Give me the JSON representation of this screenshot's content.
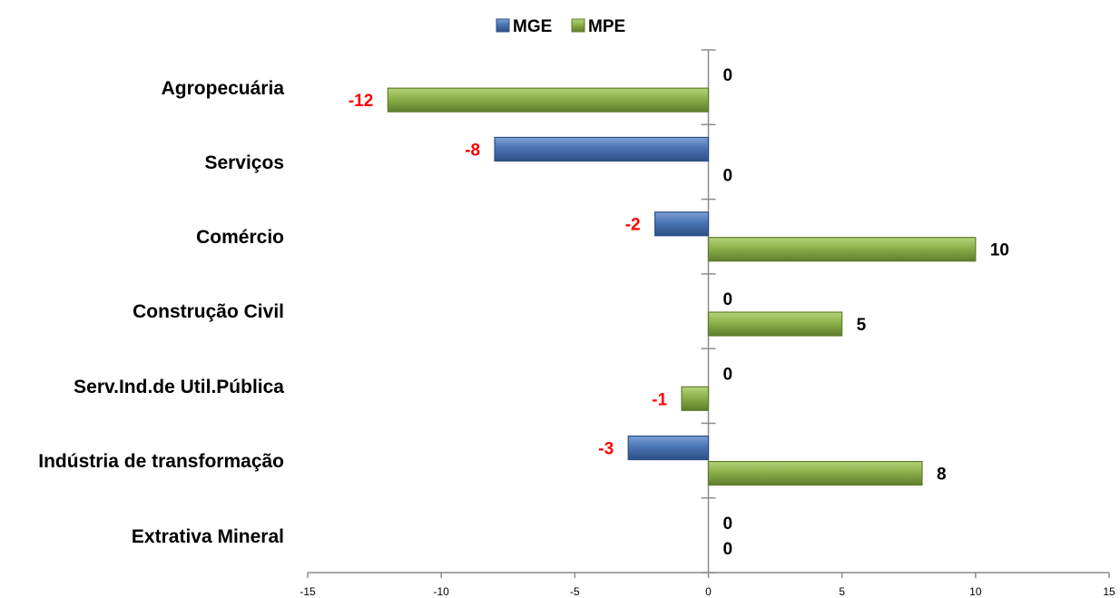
{
  "chart_data": {
    "type": "bar",
    "orientation": "horizontal",
    "categories": [
      "Agropecuária",
      "Serviços",
      "Comércio",
      "Construção Civil",
      "Serv.Ind.de Util.Pública",
      "Indústria de transformação",
      "Extrativa Mineral"
    ],
    "series": [
      {
        "name": "MGE",
        "color": "#4a74b4",
        "values": [
          0,
          -8,
          -2,
          0,
          0,
          -3,
          0
        ]
      },
      {
        "name": "MPE",
        "color": "#8cb04a",
        "values": [
          -12,
          0,
          10,
          5,
          -1,
          8,
          0
        ]
      }
    ],
    "xlim": [
      -15,
      15
    ],
    "xticks": [
      "-15",
      "-10",
      "-5",
      "0",
      "5",
      "10",
      "15"
    ],
    "legend_position": "top",
    "grid": false,
    "negative_label_color": "#ff0000",
    "positive_label_color": "#000000"
  }
}
